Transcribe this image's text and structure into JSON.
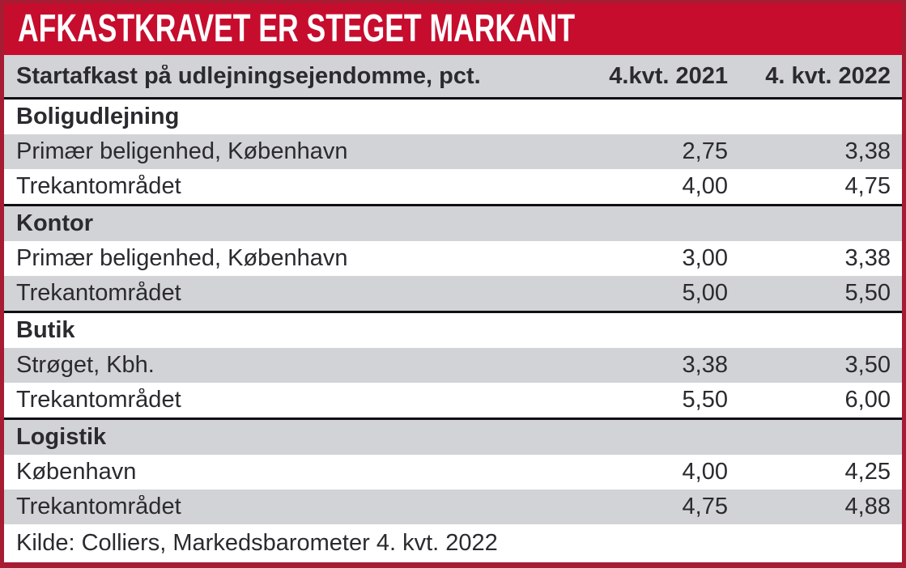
{
  "title": "AFKASTKRAVET ER STEGET MARKANT",
  "table": {
    "header": {
      "label": "Startafkast på udlejningsejendomme, pct.",
      "col_2021": "4.kvt. 2021",
      "col_2022": "4. kvt. 2022"
    },
    "sections": [
      {
        "name": "Boligudlejning",
        "rows": [
          {
            "label": "Primær beligenhed, København",
            "v2021": "2,75",
            "v2022": "3,38"
          },
          {
            "label": "Trekantområdet",
            "v2021": "4,00",
            "v2022": "4,75"
          }
        ]
      },
      {
        "name": "Kontor",
        "rows": [
          {
            "label": "Primær beligenhed, København",
            "v2021": "3,00",
            "v2022": "3,38"
          },
          {
            "label": "Trekantområdet",
            "v2021": "5,00",
            "v2022": "5,50"
          }
        ]
      },
      {
        "name": "Butik",
        "rows": [
          {
            "label": "Strøget, Kbh.",
            "v2021": "3,38",
            "v2022": "3,50"
          },
          {
            "label": "Trekantområdet",
            "v2021": "5,50",
            "v2022": "6,00"
          }
        ]
      },
      {
        "name": "Logistik",
        "rows": [
          {
            "label": "København",
            "v2021": "4,00",
            "v2022": "4,25"
          },
          {
            "label": "Trekantområdet",
            "v2021": "4,75",
            "v2022": "4,88"
          }
        ]
      }
    ],
    "source": "Kilde: Colliers, Markedsbarometer 4. kvt. 2022"
  },
  "colors": {
    "banner_red": "#c60d2e",
    "border_maroon": "#a51c33",
    "row_gray": "#d2d3d7",
    "row_white": "#ffffff",
    "separator_black": "#101014",
    "text_dark": "#2a2a2f",
    "title_white": "#ffffff"
  },
  "chart_data": {
    "type": "table",
    "title": "AFKASTKRAVET ER STEGET MARKANT",
    "columns": [
      "Startafkast på udlejningsejendomme, pct.",
      "4.kvt. 2021",
      "4. kvt. 2022"
    ],
    "sections": [
      {
        "name": "Boligudlejning",
        "rows": [
          {
            "label": "Primær beligenhed, København",
            "values": [
              2.75,
              3.38
            ]
          },
          {
            "label": "Trekantområdet",
            "values": [
              4.0,
              4.75
            ]
          }
        ]
      },
      {
        "name": "Kontor",
        "rows": [
          {
            "label": "Primær beligenhed, København",
            "values": [
              3.0,
              3.38
            ]
          },
          {
            "label": "Trekantområdet",
            "values": [
              5.0,
              5.5
            ]
          }
        ]
      },
      {
        "name": "Butik",
        "rows": [
          {
            "label": "Strøget, Kbh.",
            "values": [
              3.38,
              3.5
            ]
          },
          {
            "label": "Trekantområdet",
            "values": [
              5.5,
              6.0
            ]
          }
        ]
      },
      {
        "name": "Logistik",
        "rows": [
          {
            "label": "København",
            "values": [
              4.0,
              4.25
            ]
          },
          {
            "label": "Trekantområdet",
            "values": [
              4.75,
              4.88
            ]
          }
        ]
      }
    ],
    "unit": "pct.",
    "decimal_separator": ",",
    "source": "Kilde: Colliers, Markedsbarometer 4. kvt. 2022",
    "layout": {
      "zebra_striping": true,
      "value_alignment": "right",
      "section_dividers": "black-line"
    }
  }
}
